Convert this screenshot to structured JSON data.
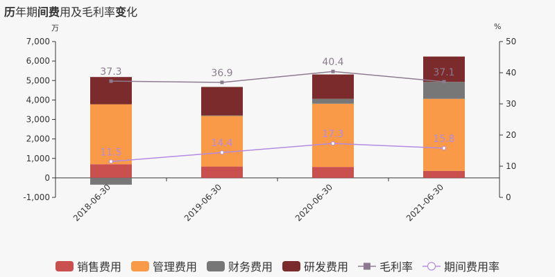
{
  "title": {
    "parts": [
      {
        "text": "历",
        "bold": true
      },
      {
        "text": "年期",
        "bold": false
      },
      {
        "text": "间费",
        "bold": true
      },
      {
        "text": "用及毛利率",
        "bold": false
      },
      {
        "text": "变",
        "bold": true
      },
      {
        "text": "化",
        "bold": false
      }
    ]
  },
  "units": {
    "left": "万",
    "right": "%"
  },
  "colors": {
    "sales": "#c9504f",
    "admin": "#f89a47",
    "finance": "#777777",
    "rd": "#7b2b2c",
    "gross_margin": "#8c7b8f",
    "expense_ratio": "#b48ae2",
    "background": "#f7f7f7"
  },
  "chart_data": {
    "type": "bar",
    "stacked": true,
    "categories": [
      "2018-06-30",
      "2019-06-30",
      "2020-06-30",
      "2021-06-30"
    ],
    "series": [
      {
        "name": "销售费用",
        "key": "sales",
        "axis": "left",
        "values": [
          700,
          580,
          560,
          360
        ]
      },
      {
        "name": "管理费用",
        "key": "admin",
        "axis": "left",
        "values": [
          3080,
          2600,
          3250,
          3700
        ]
      },
      {
        "name": "财务费用",
        "key": "finance",
        "axis": "left",
        "values": [
          -350,
          30,
          250,
          870
        ]
      },
      {
        "name": "研发费用",
        "key": "rd",
        "axis": "left",
        "values": [
          1400,
          1460,
          1250,
          1300
        ]
      },
      {
        "name": "毛利率",
        "key": "gross_margin",
        "type": "line",
        "axis": "right",
        "marker": "square",
        "values": [
          37.3,
          36.9,
          40.4,
          37.1
        ]
      },
      {
        "name": "期间费用率",
        "key": "expense_ratio",
        "type": "line",
        "axis": "right",
        "marker": "circle",
        "values": [
          11.5,
          14.4,
          17.3,
          15.8
        ]
      }
    ],
    "y_left": {
      "min": -1000,
      "max": 7000,
      "ticks": [
        -1000,
        0,
        1000,
        2000,
        3000,
        4000,
        5000,
        6000,
        7000
      ],
      "tick_labels": [
        "-1,000",
        "0",
        "1,000",
        "2,000",
        "3,000",
        "4,000",
        "5,000",
        "6,000",
        "7,000"
      ]
    },
    "y_right": {
      "min": 0,
      "max": 50,
      "ticks": [
        0,
        10,
        20,
        30,
        40,
        50
      ],
      "tick_labels": [
        "0",
        "10",
        "20",
        "30",
        "40",
        "50"
      ]
    },
    "data_labels": {
      "gross_margin": [
        "37.3",
        "36.9",
        "40.4",
        "37.1"
      ],
      "expense_ratio": [
        "11.5",
        "14.4",
        "17.3",
        "15.8"
      ]
    },
    "grid": false,
    "legend_position": "bottom"
  }
}
